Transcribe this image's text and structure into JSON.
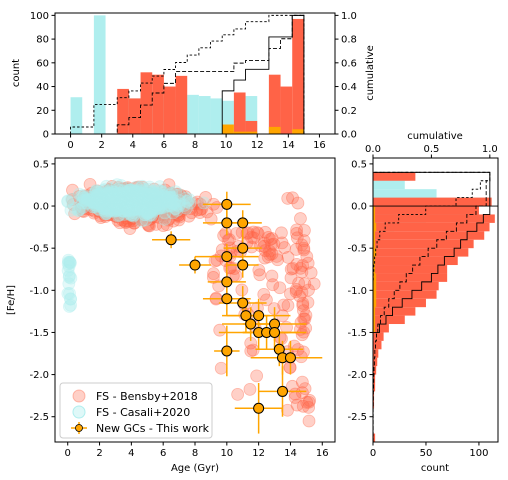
{
  "chart_data": [
    {
      "type": "bar",
      "title": "",
      "xlabel": "",
      "ylabel": "count",
      "y2label": "cumulative",
      "xlim": [
        -1,
        17
      ],
      "ylim": [
        0,
        102
      ],
      "y2lim": [
        0,
        1.02
      ],
      "xticks": [
        "0",
        "2",
        "4",
        "6",
        "8",
        "10",
        "12",
        "14",
        "16"
      ],
      "yticks": [
        "0",
        "20",
        "40",
        "60",
        "80",
        "100"
      ],
      "y2ticks": [
        "0.0",
        "0.2",
        "0.4",
        "0.6",
        "0.8",
        "1.0"
      ],
      "series": [
        {
          "name": "FS - Casali+2020",
          "color": "#AFEEEE",
          "bin_width": 0.75,
          "bin_start": 0,
          "values": [
            31,
            0,
            100,
            0,
            30,
            30,
            35,
            31,
            29,
            31,
            33,
            32,
            30,
            28,
            26,
            32,
            0,
            28,
            0,
            0
          ]
        },
        {
          "name": "FS - Bensby+2018",
          "color": "#FF6347",
          "bin_width": 0.75,
          "bin_start": 0,
          "values": [
            0,
            0,
            0,
            0,
            38,
            30,
            52,
            50,
            40,
            49,
            0,
            0,
            0,
            0,
            35,
            11,
            0,
            50,
            40,
            97
          ]
        },
        {
          "name": "New GCs - This work",
          "color": "#FFA500",
          "bin_width": 0.75,
          "bin_start": 0,
          "values": [
            0,
            0,
            0,
            0,
            0,
            0,
            0,
            0,
            0,
            0,
            0,
            0,
            0,
            8,
            2,
            2,
            0,
            6,
            0,
            4
          ]
        }
      ]
    },
    {
      "type": "scatter",
      "xlabel": "Age (Gyr)",
      "ylabel": "[Fe/H]",
      "xlim": [
        -0.8,
        16.8
      ],
      "ylim": [
        -2.8,
        0.57
      ],
      "xticks": [
        "0",
        "2",
        "4",
        "6",
        "8",
        "10",
        "12",
        "14",
        "16"
      ],
      "yticks": [
        "0.5",
        "0.0",
        "-0.5",
        "-1.0",
        "-1.5",
        "-2.0",
        "-2.5"
      ],
      "legend_position": "lower-left",
      "legend": [
        "FS - Bensby+2018",
        "FS - Casali+2020",
        "New GCs - This work"
      ],
      "colors": {
        "bensby": "#FF6347",
        "casali": "#AFEEEE",
        "gc": "#FFA500"
      },
      "gc_points": [
        {
          "x": 6.5,
          "y": -0.4,
          "xerr": 1.2,
          "yerr": 0.1
        },
        {
          "x": 8.0,
          "y": -0.7,
          "xerr": 1.0,
          "yerr": 0.1
        },
        {
          "x": 10.0,
          "y": 0.02,
          "xerr": 1.5,
          "yerr": 0.15
        },
        {
          "x": 10.0,
          "y": -0.2,
          "xerr": 1.5,
          "yerr": 0.15
        },
        {
          "x": 11.0,
          "y": -0.2,
          "xerr": 1.2,
          "yerr": 0.15
        },
        {
          "x": 10.0,
          "y": -0.6,
          "xerr": 2.0,
          "yerr": 0.15
        },
        {
          "x": 11.0,
          "y": -0.5,
          "xerr": 1.2,
          "yerr": 0.15
        },
        {
          "x": 11.0,
          "y": -0.7,
          "xerr": 1.0,
          "yerr": 0.15
        },
        {
          "x": 10.0,
          "y": -0.9,
          "xerr": 1.2,
          "yerr": 0.15
        },
        {
          "x": 10.0,
          "y": -1.1,
          "xerr": 1.5,
          "yerr": 0.2
        },
        {
          "x": 11.0,
          "y": -1.15,
          "xerr": 1.5,
          "yerr": 0.2
        },
        {
          "x": 11.2,
          "y": -1.3,
          "xerr": 1.5,
          "yerr": 0.2
        },
        {
          "x": 11.5,
          "y": -1.4,
          "xerr": 1.8,
          "yerr": 0.2
        },
        {
          "x": 12.0,
          "y": -1.3,
          "xerr": 2.0,
          "yerr": 0.2
        },
        {
          "x": 12.0,
          "y": -1.5,
          "xerr": 2.5,
          "yerr": 0.2
        },
        {
          "x": 12.5,
          "y": -1.5,
          "xerr": 1.5,
          "yerr": 0.2
        },
        {
          "x": 13.0,
          "y": -1.4,
          "xerr": 2.0,
          "yerr": 0.2
        },
        {
          "x": 13.0,
          "y": -1.5,
          "xerr": 2.0,
          "yerr": 0.2
        },
        {
          "x": 13.3,
          "y": -1.7,
          "xerr": 1.5,
          "yerr": 0.2
        },
        {
          "x": 13.5,
          "y": -1.8,
          "xerr": 2.0,
          "yerr": 0.2
        },
        {
          "x": 14.0,
          "y": -1.8,
          "xerr": 2.0,
          "yerr": 0.2
        },
        {
          "x": 10.0,
          "y": -1.72,
          "xerr": 0.8,
          "yerr": 0.3
        },
        {
          "x": 13.5,
          "y": -2.2,
          "xerr": 1.5,
          "yerr": 0.3
        },
        {
          "x": 12.0,
          "y": -2.4,
          "xerr": 1.5,
          "yerr": 0.3
        }
      ]
    },
    {
      "type": "bar",
      "orientation": "horizontal",
      "xlabel": "count",
      "x2label": "cumulative",
      "xlim": [
        0,
        118
      ],
      "ylim": [
        -2.8,
        0.57
      ],
      "xticks": [
        "0",
        "50",
        "100"
      ],
      "x2ticks": [
        "0.0",
        "0.5",
        "1.0"
      ],
      "series": [
        {
          "name": "FS - Casali+2020",
          "color": "#AFEEEE",
          "bin_start": 0.4,
          "bin_width": 0.1,
          "values": [
            35,
            30,
            60,
            112,
            100,
            50,
            20,
            10,
            5,
            4,
            3,
            2,
            1,
            0,
            0,
            0,
            0,
            0,
            0,
            0,
            0,
            0,
            0,
            0,
            0,
            0,
            0,
            0,
            0,
            0,
            0,
            0
          ]
        },
        {
          "name": "FS - Bensby+2018",
          "color": "#FF6347",
          "bin_start": 0.4,
          "bin_width": 0.1,
          "values": [
            40,
            0,
            0,
            112,
            100,
            115,
            110,
            105,
            95,
            90,
            80,
            70,
            70,
            62,
            60,
            50,
            40,
            30,
            15,
            10,
            8,
            5,
            4,
            3,
            2,
            2,
            1,
            1,
            0,
            0,
            0,
            2
          ]
        },
        {
          "name": "New GCs - This work",
          "color": "#FFA500",
          "bin_start": 0.4,
          "bin_width": 0.1,
          "values": [
            0,
            0,
            0,
            0,
            2,
            2,
            3,
            2,
            2,
            3,
            2,
            2,
            3,
            3,
            3,
            3,
            2,
            2,
            2,
            0,
            0,
            0,
            0,
            0,
            0,
            0,
            0,
            0,
            0,
            0,
            0,
            0
          ]
        }
      ]
    }
  ]
}
